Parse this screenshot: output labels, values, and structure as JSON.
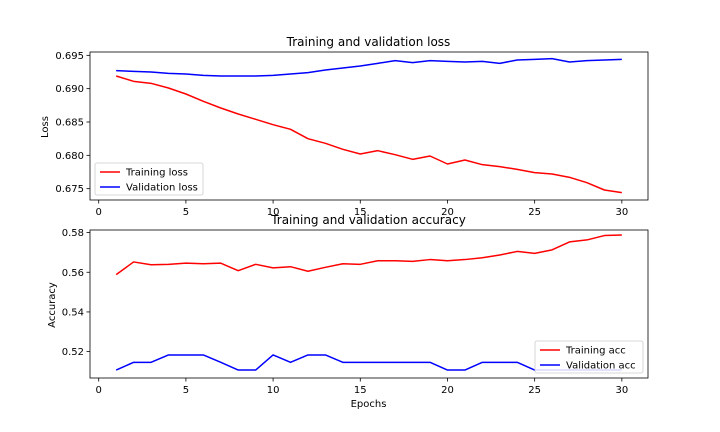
{
  "chart_data": [
    {
      "type": "line",
      "title": "Training and validation loss",
      "xlabel": "",
      "ylabel": "Loss",
      "xlim": [
        -0.5,
        31.5
      ],
      "ylim": [
        0.6733,
        0.6955
      ],
      "xticks": [
        0,
        5,
        10,
        15,
        20,
        25,
        30
      ],
      "yticks": [
        0.675,
        0.68,
        0.685,
        0.69,
        0.695
      ],
      "ytick_labels": [
        "0.675",
        "0.680",
        "0.685",
        "0.690",
        "0.695"
      ],
      "grid": false,
      "legend_position": "lower-left",
      "x": [
        1,
        2,
        3,
        4,
        5,
        6,
        7,
        8,
        9,
        10,
        11,
        12,
        13,
        14,
        15,
        16,
        17,
        18,
        19,
        20,
        21,
        22,
        23,
        24,
        25,
        26,
        27,
        28,
        29,
        30
      ],
      "series": [
        {
          "name": "Training loss",
          "color": "#ff0000",
          "values": [
            0.6919,
            0.6911,
            0.6908,
            0.6901,
            0.6892,
            0.6881,
            0.6871,
            0.6862,
            0.6854,
            0.6846,
            0.6839,
            0.6825,
            0.6818,
            0.6809,
            0.6802,
            0.6807,
            0.6801,
            0.6794,
            0.6799,
            0.6787,
            0.6793,
            0.6786,
            0.6783,
            0.6779,
            0.6774,
            0.6772,
            0.6767,
            0.6759,
            0.6748,
            0.6744
          ]
        },
        {
          "name": "Validation loss",
          "color": "#0000ff",
          "values": [
            0.6927,
            0.6926,
            0.6925,
            0.6923,
            0.6922,
            0.692,
            0.6919,
            0.6919,
            0.6919,
            0.692,
            0.6922,
            0.6924,
            0.6928,
            0.6931,
            0.6934,
            0.6938,
            0.6942,
            0.6939,
            0.6942,
            0.6941,
            0.694,
            0.6941,
            0.6938,
            0.6943,
            0.6944,
            0.6945,
            0.694,
            0.6942,
            0.6943,
            0.6944
          ]
        }
      ]
    },
    {
      "type": "line",
      "title": "Training and validation accuracy",
      "xlabel": "Epochs",
      "ylabel": "Accuracy",
      "xlim": [
        -0.5,
        31.5
      ],
      "ylim": [
        0.5067,
        0.5813
      ],
      "xticks": [
        0,
        5,
        10,
        15,
        20,
        25,
        30
      ],
      "yticks": [
        0.52,
        0.54,
        0.56,
        0.58
      ],
      "ytick_labels": [
        "0.52",
        "0.54",
        "0.56",
        "0.58"
      ],
      "grid": false,
      "legend_position": "lower-right",
      "x": [
        1,
        2,
        3,
        4,
        5,
        6,
        7,
        8,
        9,
        10,
        11,
        12,
        13,
        14,
        15,
        16,
        17,
        18,
        19,
        20,
        21,
        22,
        23,
        24,
        25,
        26,
        27,
        28,
        29,
        30
      ],
      "series": [
        {
          "name": "Training acc",
          "color": "#ff0000",
          "values": [
            0.5588,
            0.5652,
            0.5638,
            0.564,
            0.5646,
            0.5643,
            0.5646,
            0.5608,
            0.564,
            0.5622,
            0.5628,
            0.5605,
            0.5625,
            0.5643,
            0.564,
            0.5658,
            0.5658,
            0.5655,
            0.5664,
            0.5658,
            0.5664,
            0.5673,
            0.5687,
            0.5705,
            0.5695,
            0.5713,
            0.5753,
            0.5763,
            0.5785,
            0.5788
          ]
        },
        {
          "name": "Validation acc",
          "color": "#0000ff",
          "values": [
            0.5107,
            0.5146,
            0.5146,
            0.5183,
            0.5183,
            0.5183,
            0.5146,
            0.5107,
            0.5107,
            0.5183,
            0.5146,
            0.5183,
            0.5183,
            0.5146,
            0.5146,
            0.5146,
            0.5146,
            0.5146,
            0.5146,
            0.5107,
            0.5107,
            0.5146,
            0.5146,
            0.5146,
            0.5107,
            0.5107,
            0.5107,
            0.5107,
            0.5107,
            0.5107
          ]
        }
      ]
    }
  ]
}
